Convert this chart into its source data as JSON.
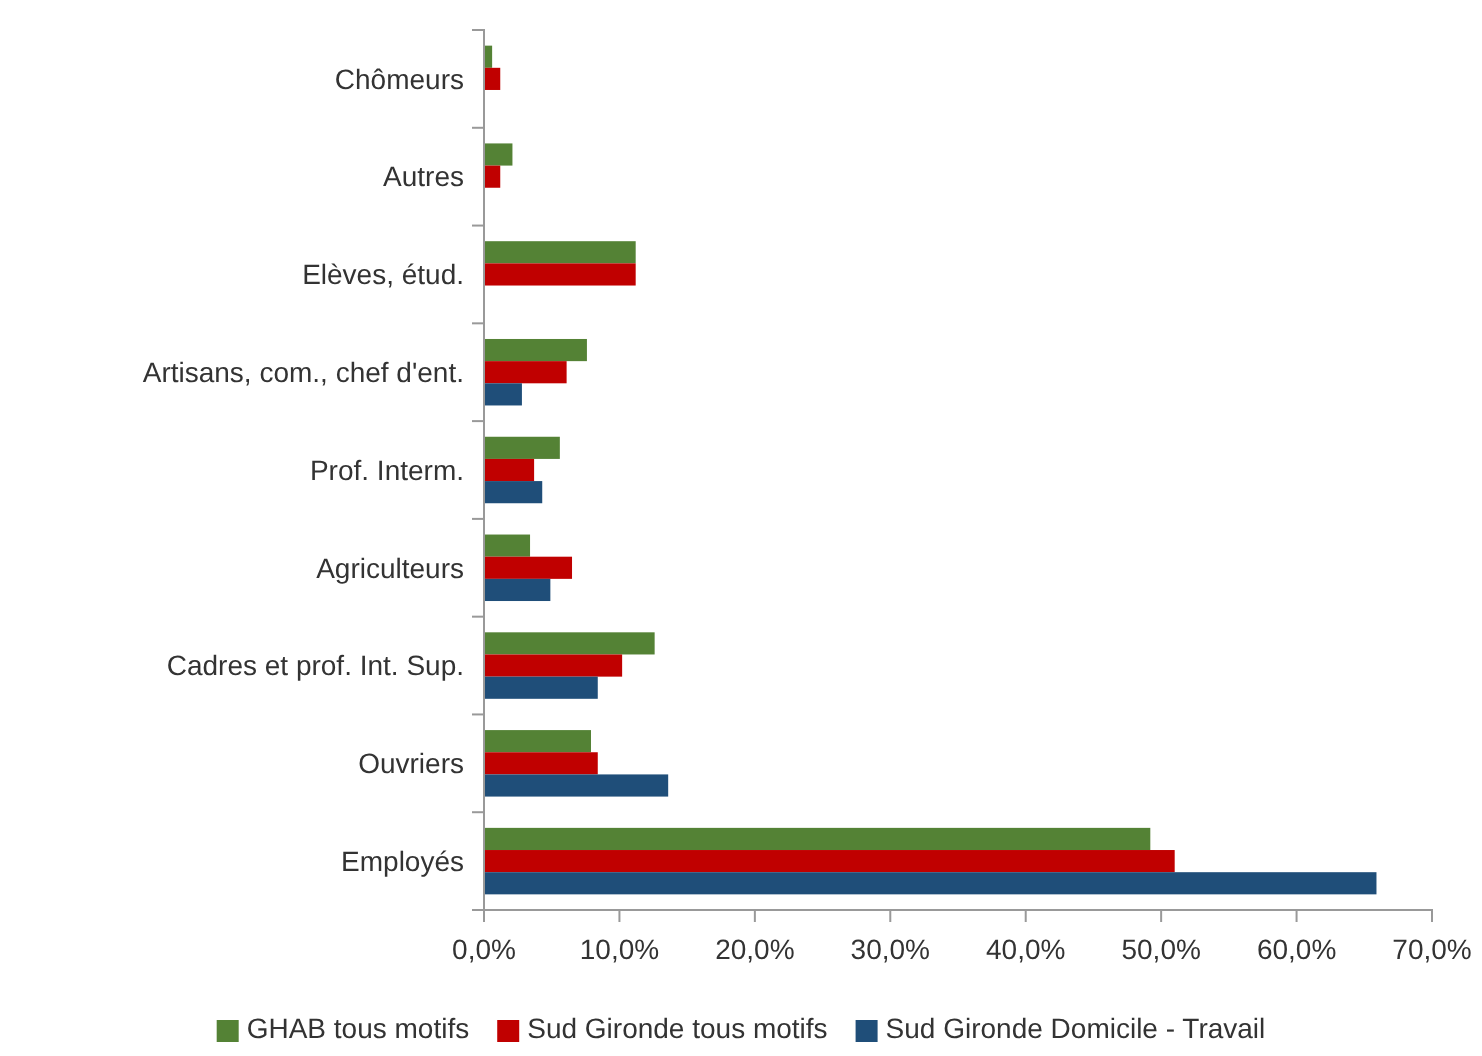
{
  "chart_data": {
    "type": "bar",
    "orientation": "horizontal",
    "categories": [
      "Chômeurs",
      "Autres",
      "Elèves, étud.",
      "Artisans, com., chef d'ent.",
      "Prof. Interm.",
      "Agriculteurs",
      "Cadres et prof. Int. Sup.",
      "Ouvriers",
      "Employés"
    ],
    "series": [
      {
        "name": "GHAB tous motifs",
        "color": "#548235",
        "values": [
          0.6,
          2.1,
          11.2,
          7.6,
          5.6,
          3.4,
          12.6,
          7.9,
          49.2
        ]
      },
      {
        "name": "Sud Gironde tous motifs",
        "color": "#c00000",
        "values": [
          1.2,
          1.2,
          11.2,
          6.1,
          3.7,
          6.5,
          10.2,
          8.4,
          51.0
        ]
      },
      {
        "name": "Sud Gironde Domicile - Travail",
        "color": "#1f4e79",
        "values": [
          null,
          null,
          null,
          2.8,
          4.3,
          4.9,
          8.4,
          13.6,
          65.9
        ]
      }
    ],
    "xlim": [
      0,
      70
    ],
    "xticks": [
      {
        "value": 0,
        "label": "0,0%"
      },
      {
        "value": 10,
        "label": "10,0%"
      },
      {
        "value": 20,
        "label": "20,0%"
      },
      {
        "value": 30,
        "label": "30,0%"
      },
      {
        "value": 40,
        "label": "40,0%"
      },
      {
        "value": 50,
        "label": "50,0%"
      },
      {
        "value": 60,
        "label": "60,0%"
      },
      {
        "value": 70,
        "label": "70,0%"
      }
    ],
    "legend": "bottom"
  }
}
